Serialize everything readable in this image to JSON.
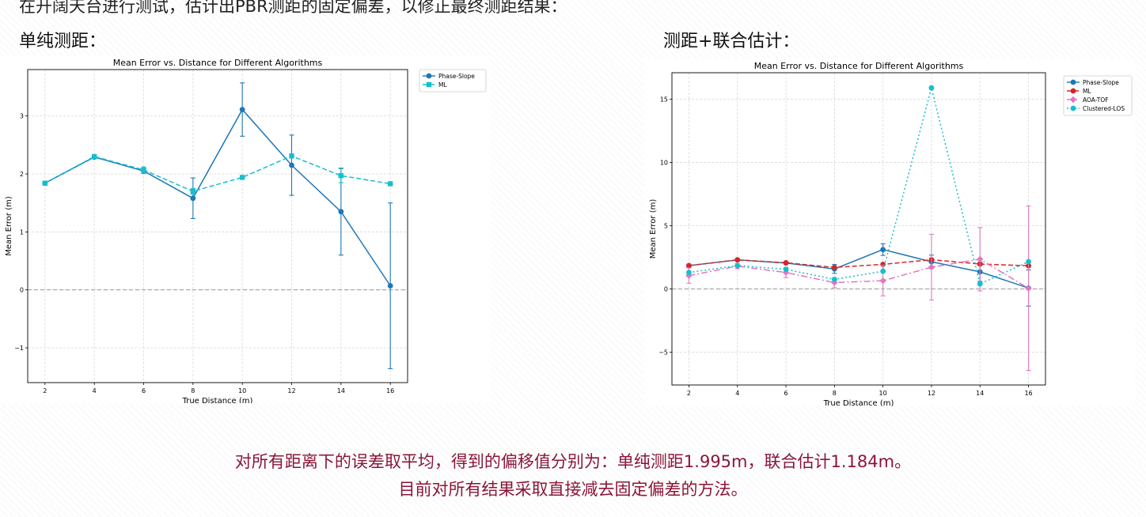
{
  "header_text": "在开阔天台进行测试，估计出PBR测距的固定偏差，以修正最终测距结果：",
  "left_label": "单纯测距：",
  "right_label": "测距+联合估计：",
  "conclusion_line1": "对所有距离下的误差取平均，得到的偏移值分别为：单纯测距1.995m，联合估计1.184m。",
  "conclusion_line2": "目前对所有结果采取直接减去固定偏差的方法。",
  "chart_data": [
    {
      "type": "line",
      "title": "Mean Error vs. Distance for Different Algorithms",
      "xlabel": "True Distance (m)",
      "ylabel": "Mean Error (m)",
      "x": [
        2,
        4,
        6,
        8,
        10,
        12,
        14,
        16
      ],
      "xticks": [
        2,
        4,
        6,
        8,
        10,
        12,
        14,
        16
      ],
      "yticks": [
        -1,
        0,
        1,
        2,
        3
      ],
      "xlim": [
        1.3,
        16.7
      ],
      "ylim": [
        -1.6,
        3.8
      ],
      "grid": true,
      "reference_line_y": 0,
      "legend_position": "top-right-outside",
      "series": [
        {
          "name": "Phase-Slope",
          "color": "#1f77b4",
          "dash": "",
          "marker": "circle",
          "values": [
            1.84,
            2.29,
            2.05,
            1.58,
            3.11,
            2.15,
            1.35,
            0.07
          ],
          "errors": [
            0.01,
            0.02,
            0.04,
            0.35,
            0.46,
            0.52,
            0.75,
            1.43
          ]
        },
        {
          "name": "ML",
          "color": "#17becf",
          "dash": "6,3",
          "marker": "square",
          "values": [
            1.84,
            2.3,
            2.07,
            1.7,
            1.94,
            2.31,
            1.97,
            1.83
          ],
          "errors": [
            0.01,
            0.02,
            0.05,
            0.05,
            0.02,
            0.02,
            0.12,
            0.02
          ]
        }
      ]
    },
    {
      "type": "line",
      "title": "Mean Error vs. Distance for Different Algorithms",
      "xlabel": "True Distance (m)",
      "ylabel": "Mean Error (m)",
      "x": [
        2,
        4,
        6,
        8,
        10,
        12,
        14,
        16
      ],
      "xticks": [
        2,
        4,
        6,
        8,
        10,
        12,
        14,
        16
      ],
      "yticks": [
        -5,
        0,
        5,
        10,
        15
      ],
      "xlim": [
        1.3,
        16.7
      ],
      "ylim": [
        -7.6,
        17.1
      ],
      "grid": true,
      "reference_line_y": 0,
      "legend_position": "top-right-outside",
      "series": [
        {
          "name": "Phase-Slope",
          "color": "#1f77b4",
          "dash": "",
          "marker": "circle",
          "values": [
            1.84,
            2.29,
            2.05,
            1.58,
            3.11,
            2.15,
            1.35,
            0.07
          ],
          "errors": [
            0.01,
            0.02,
            0.04,
            0.35,
            0.46,
            0.52,
            0.75,
            1.43
          ]
        },
        {
          "name": "ML",
          "color": "#d62728",
          "dash": "6,3",
          "marker": "circle",
          "values": [
            1.84,
            2.3,
            2.07,
            1.7,
            1.94,
            2.31,
            1.97,
            1.83
          ],
          "errors": [
            0.01,
            0.02,
            0.05,
            0.05,
            0.02,
            0.02,
            0.12,
            0.02
          ]
        },
        {
          "name": "AOA-TOF",
          "color": "#e377c2",
          "dash": "8,3,2,3",
          "marker": "diamond",
          "values": [
            1.05,
            1.8,
            1.3,
            0.5,
            0.65,
            1.72,
            2.35,
            0.05
          ],
          "errors": [
            0.6,
            0.2,
            0.4,
            0.4,
            1.2,
            2.6,
            2.5,
            6.5
          ]
        },
        {
          "name": "Clustered-LOS",
          "color": "#17becf",
          "dash": "2,3",
          "marker": "circle",
          "values": [
            1.3,
            1.85,
            1.55,
            0.75,
            1.4,
            15.9,
            0.4,
            2.15
          ],
          "errors": [
            0,
            0,
            0,
            0,
            0,
            0,
            0,
            0
          ]
        }
      ]
    }
  ]
}
